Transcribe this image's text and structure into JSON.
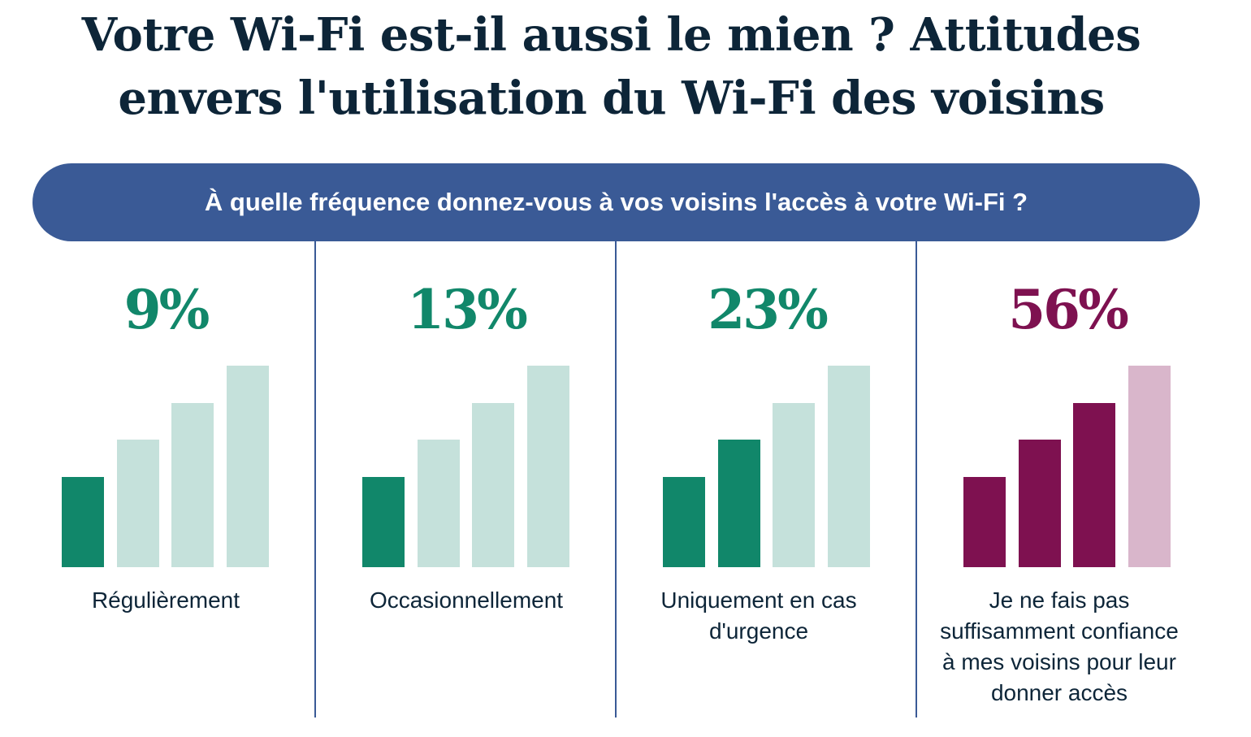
{
  "title": "Votre Wi-Fi est-il aussi le mien ? Attitudes envers l'utilisation du Wi-Fi des voisins",
  "question": "À quelle fréquence donnez-vous à vos voisins l'accès à votre Wi-Fi ?",
  "colors": {
    "green": "#11876a",
    "green_light": "#c5e1db",
    "purple": "#7e1150",
    "purple_light": "#d9b6cb"
  },
  "chart_data": {
    "type": "bar",
    "categories": [
      "Régulièrement",
      "Occasionnellement",
      "Uniquement en cas d'urgence",
      "Je ne fais pas suffisamment confiance à mes voisins pour leur donner accès"
    ],
    "values": [
      9,
      13,
      23,
      56
    ],
    "value_labels": [
      "9%",
      "13%",
      "23%",
      "56%"
    ],
    "signal_bars_filled": [
      1,
      1,
      2,
      3
    ],
    "signal_bars_total": 4,
    "palette": [
      "green",
      "green",
      "green",
      "purple"
    ]
  }
}
